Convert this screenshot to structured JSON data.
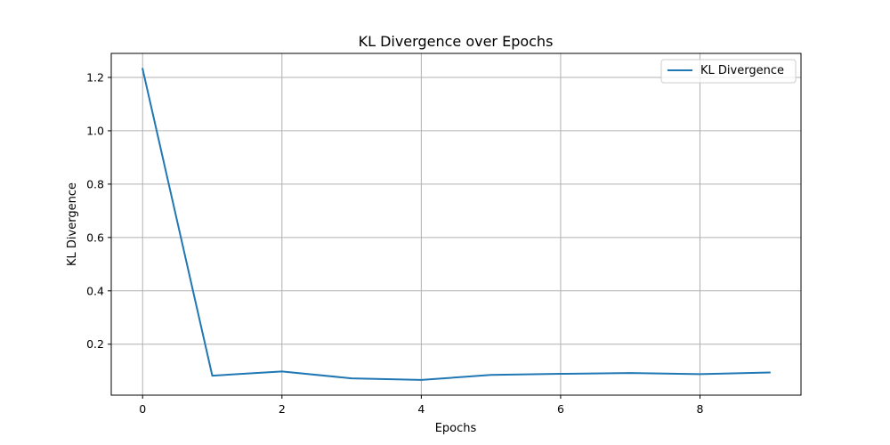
{
  "chart_data": {
    "type": "line",
    "title": "KL Divergence over Epochs",
    "xlabel": "Epochs",
    "ylabel": "KL Divergence",
    "x": [
      0,
      1,
      2,
      3,
      4,
      5,
      6,
      7,
      8,
      9
    ],
    "series": [
      {
        "name": "KL Divergence",
        "color": "#1f77b4",
        "values": [
          1.232,
          0.082,
          0.098,
          0.072,
          0.066,
          0.085,
          0.089,
          0.092,
          0.088,
          0.094
        ]
      }
    ],
    "xlim": [
      -0.45,
      9.45
    ],
    "ylim": [
      0.009,
      1.29
    ],
    "xticks": [
      0,
      2,
      4,
      6,
      8
    ],
    "xtick_labels": [
      "0",
      "2",
      "4",
      "6",
      "8"
    ],
    "yticks": [
      0.2,
      0.4,
      0.6,
      0.8,
      1.0,
      1.2
    ],
    "ytick_labels": [
      "0.2",
      "0.4",
      "0.6",
      "0.8",
      "1.0",
      "1.2"
    ],
    "grid": true,
    "legend_position": "top-right"
  }
}
